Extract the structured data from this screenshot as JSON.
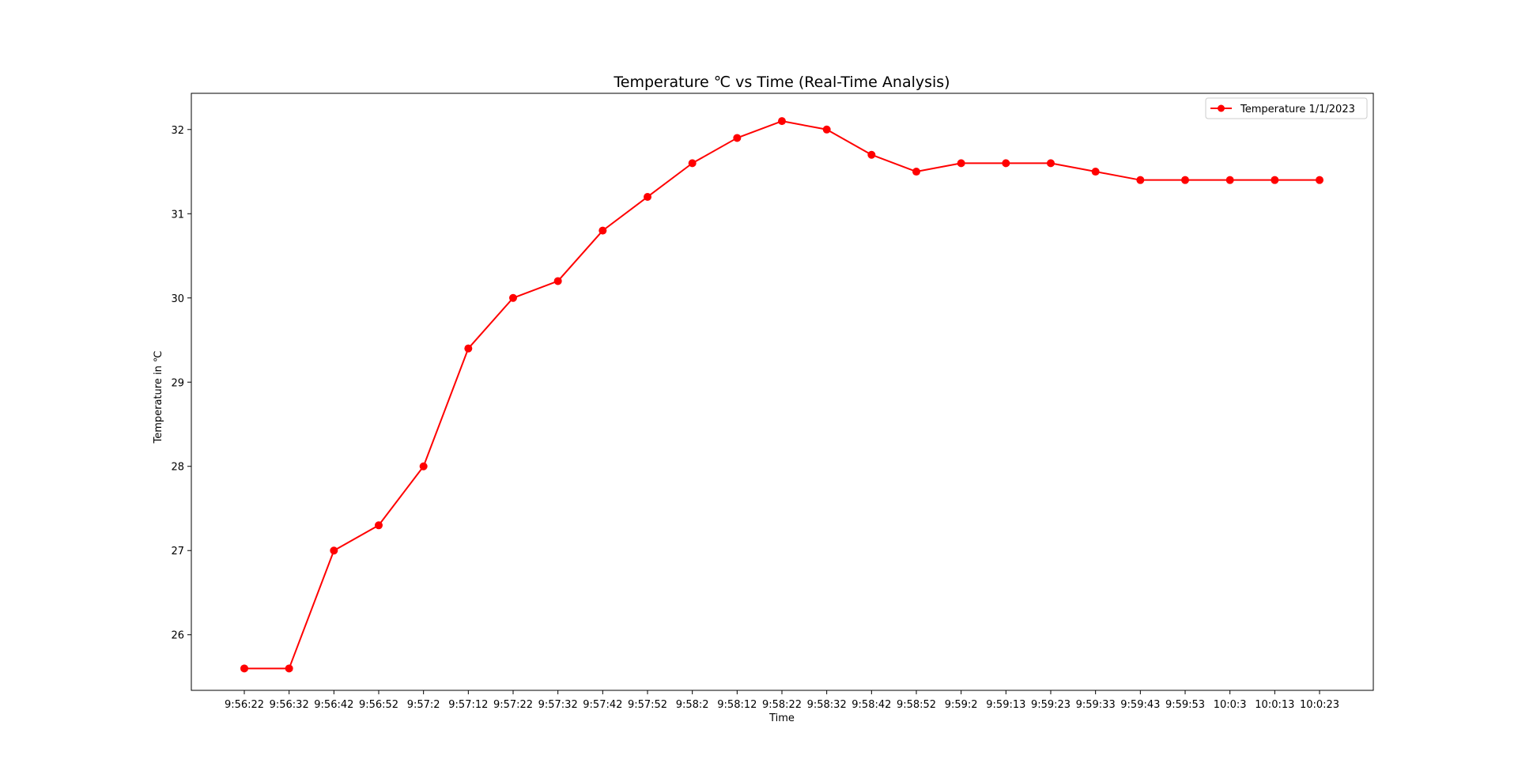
{
  "chart_data": {
    "type": "line",
    "title": "Temperature ℃ vs Time (Real-Time Analysis)",
    "xlabel": "Time",
    "ylabel": "Temperature in ℃",
    "categories": [
      "9:56:22",
      "9:56:32",
      "9:56:42",
      "9:56:52",
      "9:57:2",
      "9:57:12",
      "9:57:22",
      "9:57:32",
      "9:57:42",
      "9:57:52",
      "9:58:2",
      "9:58:12",
      "9:58:22",
      "9:58:32",
      "9:58:42",
      "9:58:52",
      "9:59:2",
      "9:59:13",
      "9:59:23",
      "9:59:33",
      "9:59:43",
      "9:59:53",
      "10:0:3",
      "10:0:13",
      "10:0:23"
    ],
    "series": [
      {
        "name": "Temperature 1/1/2023",
        "color": "#ff0000",
        "marker": "circle",
        "values": [
          25.6,
          25.6,
          27.0,
          27.3,
          28.0,
          29.4,
          30.0,
          30.2,
          30.8,
          31.2,
          31.6,
          31.9,
          32.1,
          32.0,
          31.7,
          31.5,
          31.6,
          31.6,
          31.6,
          31.5,
          31.4,
          31.4,
          31.4,
          31.4,
          31.4
        ]
      }
    ],
    "yticks": [
      26,
      27,
      28,
      29,
      30,
      31,
      32
    ],
    "ylim": [
      25.34,
      32.43
    ],
    "grid": false,
    "legend_position": "top-right"
  }
}
